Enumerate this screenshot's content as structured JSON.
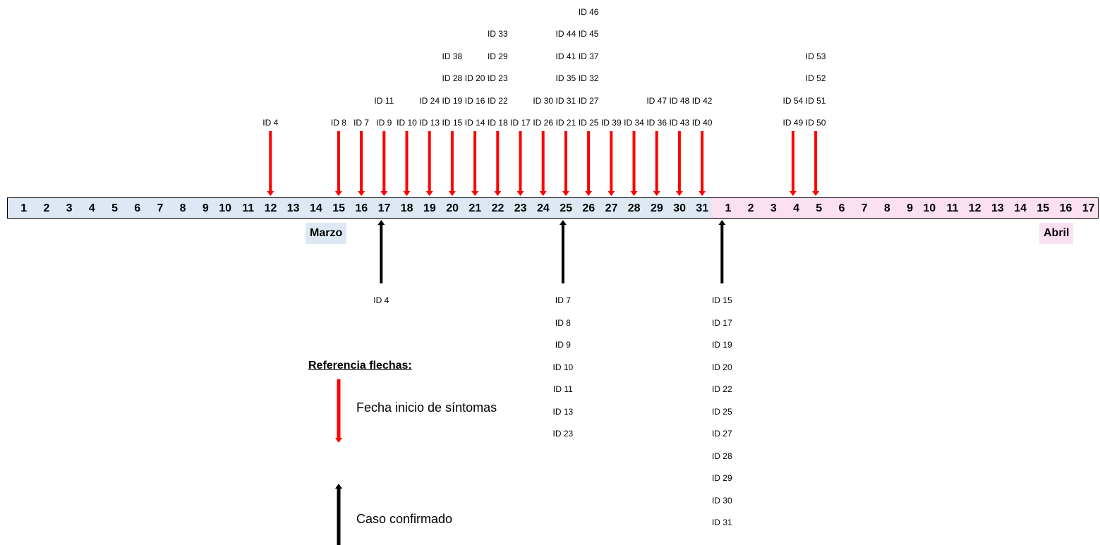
{
  "timeline": {
    "march_days": [
      "1",
      "2",
      "3",
      "4",
      "5",
      "6",
      "7",
      "8",
      "9",
      "10",
      "11",
      "12",
      "13",
      "14",
      "15",
      "16",
      "17",
      "18",
      "19",
      "20",
      "21",
      "22",
      "23",
      "24",
      "25",
      "26",
      "27",
      "28",
      "29",
      "30",
      "31"
    ],
    "april_days": [
      "1",
      "2",
      "3",
      "4",
      "5",
      "6",
      "7",
      "8",
      "9",
      "10",
      "11",
      "12",
      "13",
      "14",
      "15",
      "16",
      "17"
    ],
    "march_label": "Marzo",
    "april_label": "Abril",
    "colors": {
      "march_fill": "#dde8f4",
      "april_fill": "#fbe0f2",
      "symptom_arrow": "#ff0000",
      "confirmed_arrow": "#000000"
    }
  },
  "symptom_onsets": [
    {
      "day": 12,
      "ids": [
        "ID 4"
      ]
    },
    {
      "day": 15,
      "ids": [
        "ID 8"
      ]
    },
    {
      "day": 16,
      "ids": [
        "ID 7"
      ]
    },
    {
      "day": 17,
      "ids": [
        "ID 9",
        "ID 11"
      ]
    },
    {
      "day": 18,
      "ids": [
        "ID 10"
      ]
    },
    {
      "day": 19,
      "ids": [
        "ID 13",
        "ID 24"
      ]
    },
    {
      "day": 20,
      "ids": [
        "ID 15",
        "ID 19",
        "ID 28",
        "ID 38"
      ]
    },
    {
      "day": 21,
      "ids": [
        "ID 14",
        "ID 16",
        "ID 20"
      ]
    },
    {
      "day": 22,
      "ids": [
        "ID 18",
        "ID 22",
        "ID 23",
        "ID 29",
        "ID 33"
      ]
    },
    {
      "day": 23,
      "ids": [
        "ID 17"
      ]
    },
    {
      "day": 24,
      "ids": [
        "ID 26",
        "ID 30"
      ]
    },
    {
      "day": 25,
      "ids": [
        "ID 21",
        "ID 31",
        "ID 35",
        "ID 41",
        "ID 44"
      ]
    },
    {
      "day": 26,
      "ids": [
        "ID 25",
        "ID 27",
        "ID 32",
        "ID 37",
        "ID 45",
        "ID 46"
      ]
    },
    {
      "day": 27,
      "ids": [
        "ID 39"
      ]
    },
    {
      "day": 28,
      "ids": [
        "ID 34"
      ]
    },
    {
      "day": 29,
      "ids": [
        "ID 36",
        "ID 47"
      ]
    },
    {
      "day": 30,
      "ids": [
        "ID 43",
        "ID 48"
      ]
    },
    {
      "day": 31,
      "ids": [
        "ID 40",
        "ID 42"
      ]
    },
    {
      "day": 35,
      "ids": [
        "ID 49",
        "ID 54"
      ]
    },
    {
      "day": 36,
      "ids": [
        "ID 50",
        "ID 51",
        "ID 52",
        "ID 53"
      ]
    }
  ],
  "confirmations": [
    {
      "day": 17,
      "ids": [
        "ID 4"
      ]
    },
    {
      "day": 25,
      "ids": [
        "ID 7",
        "ID 8",
        "ID 9",
        "ID 10",
        "ID 11",
        "ID 13",
        "ID 23"
      ]
    },
    {
      "day": 32,
      "ids": [
        "ID 15",
        "ID 17",
        "ID 19",
        "ID 20",
        "ID 22",
        "ID 25",
        "ID 27",
        "ID 28",
        "ID 29",
        "ID 30",
        "ID 31"
      ]
    }
  ],
  "legend": {
    "title": "Referencia flechas:",
    "symptom_label": "Fecha inicio de síntomas",
    "confirmed_label": "Caso confirmado"
  }
}
